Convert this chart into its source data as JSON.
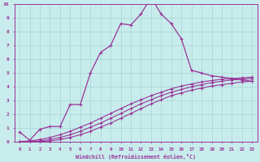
{
  "xlabel": "Windchill (Refroidissement éolien,°C)",
  "background_color": "#c8ecec",
  "grid_color": "#a8d4d4",
  "line_color": "#993399",
  "xlim": [
    -0.5,
    23.5
  ],
  "ylim": [
    0,
    10
  ],
  "xtick_labels": [
    "0",
    "1",
    "2",
    "3",
    "4",
    "5",
    "6",
    "7",
    "8",
    "9",
    "10",
    "11",
    "12",
    "13",
    "14",
    "15",
    "16",
    "17",
    "18",
    "19",
    "20",
    "21",
    "22",
    "23"
  ],
  "ytick_labels": [
    "0",
    "1",
    "2",
    "3",
    "4",
    "5",
    "6",
    "7",
    "8",
    "9",
    "10"
  ],
  "series1_x": [
    0,
    1,
    2,
    3,
    4,
    5,
    6,
    7,
    8,
    9,
    10,
    11,
    12,
    13,
    14,
    15,
    16,
    17,
    18,
    19,
    20,
    21,
    22,
    23
  ],
  "series1_y": [
    0.7,
    0.1,
    0.9,
    1.1,
    1.1,
    2.7,
    2.7,
    5.0,
    6.5,
    7.0,
    8.6,
    8.5,
    9.3,
    10.5,
    9.3,
    8.6,
    7.5,
    5.2,
    5.0,
    4.8,
    4.7,
    4.6,
    4.5,
    4.4
  ],
  "series2_x": [
    0,
    1,
    2,
    3,
    4,
    5,
    6,
    7,
    8,
    9,
    10,
    11,
    12,
    13,
    14,
    15,
    16,
    17,
    18,
    19,
    20,
    21,
    22,
    23
  ],
  "series2_y": [
    0.0,
    0.05,
    0.15,
    0.3,
    0.5,
    0.75,
    1.05,
    1.35,
    1.7,
    2.05,
    2.4,
    2.75,
    3.05,
    3.35,
    3.6,
    3.85,
    4.05,
    4.2,
    4.35,
    4.45,
    4.55,
    4.6,
    4.65,
    4.7
  ],
  "series3_x": [
    0,
    1,
    2,
    3,
    4,
    5,
    6,
    7,
    8,
    9,
    10,
    11,
    12,
    13,
    14,
    15,
    16,
    17,
    18,
    19,
    20,
    21,
    22,
    23
  ],
  "series3_y": [
    0.0,
    0.0,
    0.05,
    0.15,
    0.3,
    0.5,
    0.75,
    1.05,
    1.35,
    1.7,
    2.05,
    2.4,
    2.75,
    3.05,
    3.35,
    3.6,
    3.8,
    4.0,
    4.15,
    4.3,
    4.4,
    4.5,
    4.55,
    4.6
  ],
  "series4_x": [
    0,
    1,
    2,
    3,
    4,
    5,
    6,
    7,
    8,
    9,
    10,
    11,
    12,
    13,
    14,
    15,
    16,
    17,
    18,
    19,
    20,
    21,
    22,
    23
  ],
  "series4_y": [
    0.0,
    0.0,
    0.0,
    0.05,
    0.15,
    0.3,
    0.5,
    0.75,
    1.05,
    1.35,
    1.7,
    2.05,
    2.4,
    2.75,
    3.05,
    3.35,
    3.55,
    3.75,
    3.9,
    4.05,
    4.15,
    4.25,
    4.35,
    4.4
  ]
}
